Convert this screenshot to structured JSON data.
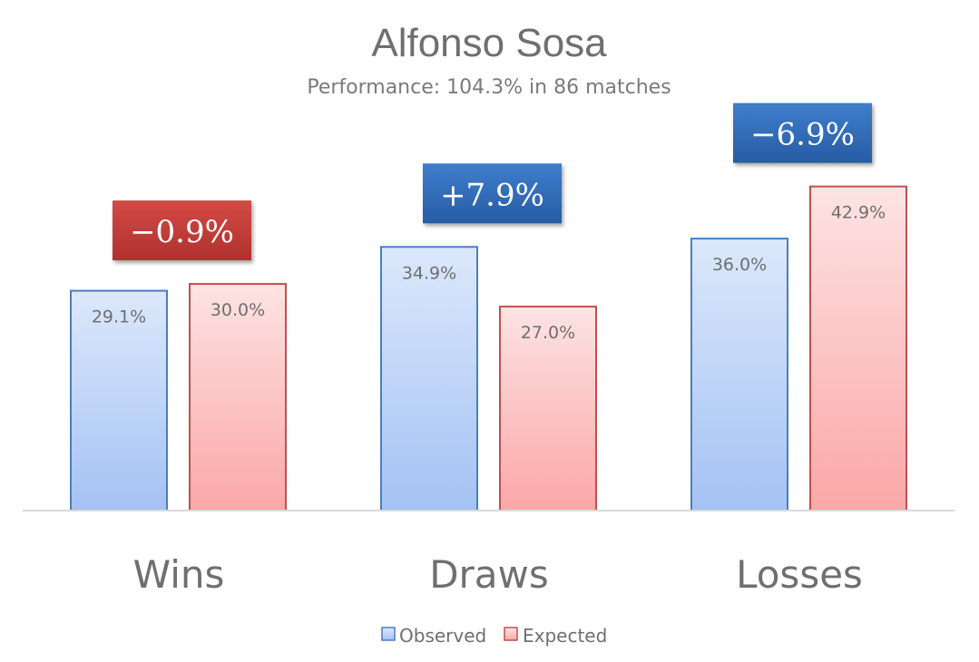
{
  "chart_data": {
    "type": "bar",
    "title": "Alfonso Sosa",
    "subtitle": "Performance: 104.3% in 86 matches",
    "categories": [
      "Wins",
      "Draws",
      "Losses"
    ],
    "series": [
      {
        "name": "Observed",
        "values": [
          29.1,
          34.9,
          36.0
        ],
        "labels": [
          "29.1%",
          "34.9%",
          "36.0%"
        ]
      },
      {
        "name": "Expected",
        "values": [
          30.0,
          27.0,
          42.9
        ],
        "labels": [
          "30.0%",
          "27.0%",
          "42.9%"
        ]
      }
    ],
    "differences": [
      {
        "label": "−0.9%",
        "sign": "negative"
      },
      {
        "label": "+7.9%",
        "sign": "positive"
      },
      {
        "label": "−6.9%",
        "sign": "positive"
      }
    ],
    "ylim": [
      0,
      50
    ],
    "legend_position": "bottom-center",
    "grid": false,
    "colors": {
      "observed_top": "#dce8fb",
      "observed_bottom": "#a4c2f4",
      "observed_stroke": "#4a7ec0",
      "expected_top": "#fde3e3",
      "expected_bottom": "#fba7a7",
      "expected_stroke": "#c0504d",
      "positive_box": "#2e67b3",
      "negative_box": "#c23a36"
    }
  }
}
